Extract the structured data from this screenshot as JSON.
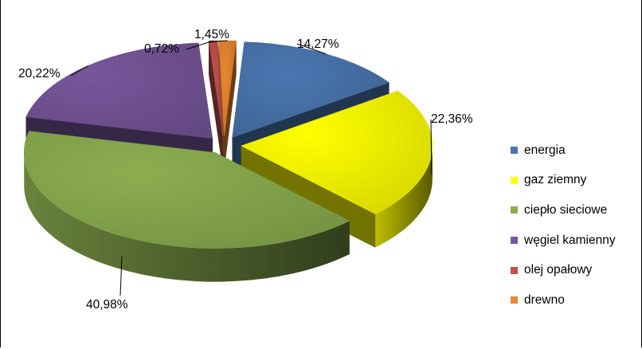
{
  "chart_data": {
    "type": "pie",
    "three_d": true,
    "exploded": true,
    "legend_position": "right",
    "categories": [
      "energia",
      "gaz ziemny",
      "ciepło sieciowe",
      "węgiel kamienny",
      "olej opałowy",
      "drewno"
    ],
    "values": [
      14.27,
      22.36,
      40.98,
      20.22,
      0.72,
      1.45
    ],
    "data_labels": [
      "14,27%",
      "22,36%",
      "40,98%",
      "20,22%",
      "0,72%",
      "1,45%"
    ],
    "colors": [
      "#4A76B0",
      "#FFFF00",
      "#8CAE50",
      "#77569B",
      "#C0504D",
      "#E8872F"
    ]
  }
}
